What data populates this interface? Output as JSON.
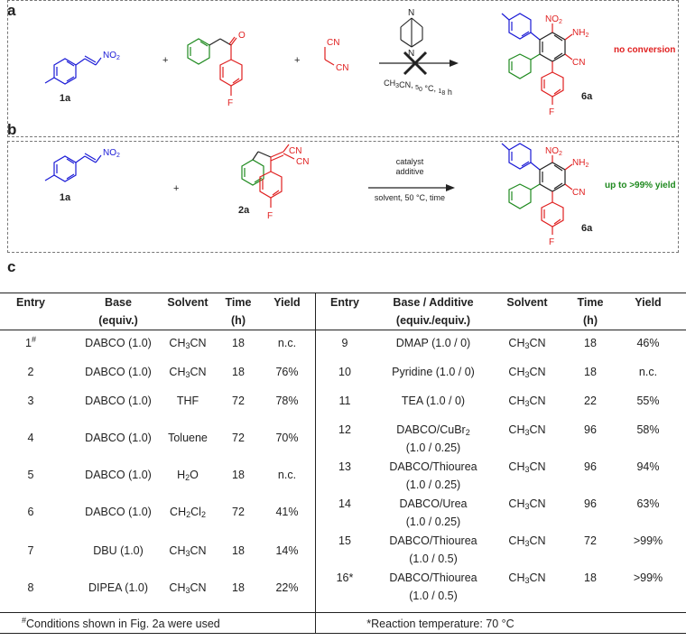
{
  "panels": {
    "a": "a",
    "b": "b",
    "c": "c"
  },
  "scheme_a": {
    "label_1a": "1a",
    "label_6a": "6a",
    "plus1": "+",
    "plus2": "+",
    "conditions": "CH3CN, 50 °C, 18 h",
    "result": "no conversion",
    "atoms": {
      "no2": "NO2",
      "nh2": "NH2",
      "cn": "CN",
      "o": "O",
      "f": "F",
      "n": "N"
    }
  },
  "scheme_b": {
    "label_1a": "1a",
    "label_2a": "2a",
    "label_6a": "6a",
    "plus": "+",
    "line1": "catalyst",
    "line2": "additive",
    "line3": "solvent, 50 °C, time",
    "result": "up to >99% yield"
  },
  "colors": {
    "blue": "#1a1ad6",
    "green": "#1f8a1f",
    "red": "#e02020",
    "black": "#222222"
  },
  "table": {
    "left_headers": [
      "Entry",
      "Base",
      "Solvent",
      "Time",
      "Yield"
    ],
    "left_headers2": [
      "",
      "(equiv.)",
      "",
      "(h)",
      ""
    ],
    "right_headers": [
      "Entry",
      "Base / Additive",
      "Solvent",
      "Time",
      "Yield"
    ],
    "right_headers2": [
      "",
      "(equiv./equiv.)",
      "",
      "(h)",
      ""
    ],
    "left_rows": [
      {
        "entry": "1",
        "mark": "#",
        "base": "DABCO (1.0)",
        "solvent": "CH3CN",
        "time": "18",
        "yield": "n.c."
      },
      {
        "entry": "2",
        "mark": "",
        "base": "DABCO (1.0)",
        "solvent": "CH3CN",
        "time": "18",
        "yield": "76%"
      },
      {
        "entry": "3",
        "mark": "",
        "base": "DABCO (1.0)",
        "solvent": "THF",
        "time": "72",
        "yield": "78%"
      },
      {
        "entry": "4",
        "mark": "",
        "base": "DABCO (1.0)",
        "solvent": "Toluene",
        "time": "72",
        "yield": "70%"
      },
      {
        "entry": "5",
        "mark": "",
        "base": "DABCO (1.0)",
        "solvent": "H2O",
        "time": "18",
        "yield": "n.c."
      },
      {
        "entry": "6",
        "mark": "",
        "base": "DABCO (1.0)",
        "solvent": "CH2Cl2",
        "time": "72",
        "yield": "41%"
      },
      {
        "entry": "7",
        "mark": "",
        "base": "DBU (1.0)",
        "solvent": "CH3CN",
        "time": "18",
        "yield": "14%"
      },
      {
        "entry": "8",
        "mark": "",
        "base": "DIPEA (1.0)",
        "solvent": "CH3CN",
        "time": "18",
        "yield": "22%"
      }
    ],
    "right_rows": [
      {
        "entry": "9",
        "base": "DMAP (1.0 / 0)",
        "base2": "",
        "solvent": "CH3CN",
        "time": "18",
        "yield": "46%"
      },
      {
        "entry": "10",
        "base": "Pyridine (1.0 / 0)",
        "base2": "",
        "solvent": "CH3CN",
        "time": "18",
        "yield": "n.c."
      },
      {
        "entry": "11",
        "base": "TEA (1.0 / 0)",
        "base2": "",
        "solvent": "CH3CN",
        "time": "22",
        "yield": "55%"
      },
      {
        "entry": "12",
        "base": "DABCO/CuBr2",
        "base2": "(1.0 / 0.25)",
        "solvent": "CH3CN",
        "time": "96",
        "yield": "58%"
      },
      {
        "entry": "13",
        "base": "DABCO/Thiourea",
        "base2": "(1.0 / 0.25)",
        "solvent": "CH3CN",
        "time": "96",
        "yield": "94%"
      },
      {
        "entry": "14",
        "base": "DABCO/Urea",
        "base2": "(1.0 / 0.25)",
        "solvent": "CH3CN",
        "time": "96",
        "yield": "63%"
      },
      {
        "entry": "15",
        "base": "DABCO/Thiourea",
        "base2": "(1.0 / 0.5)",
        "solvent": "CH3CN",
        "time": "72",
        "yield": ">99%"
      },
      {
        "entry": "16*",
        "base": "DABCO/Thiourea",
        "base2": "(1.0 / 0.5)",
        "solvent": "CH3CN",
        "time": "18",
        "yield": ">99%"
      }
    ],
    "footnote_left_mark": "#",
    "footnote_left": "Conditions shown in Fig. 2a were used",
    "footnote_right": "*Reaction temperature: 70 °C"
  }
}
